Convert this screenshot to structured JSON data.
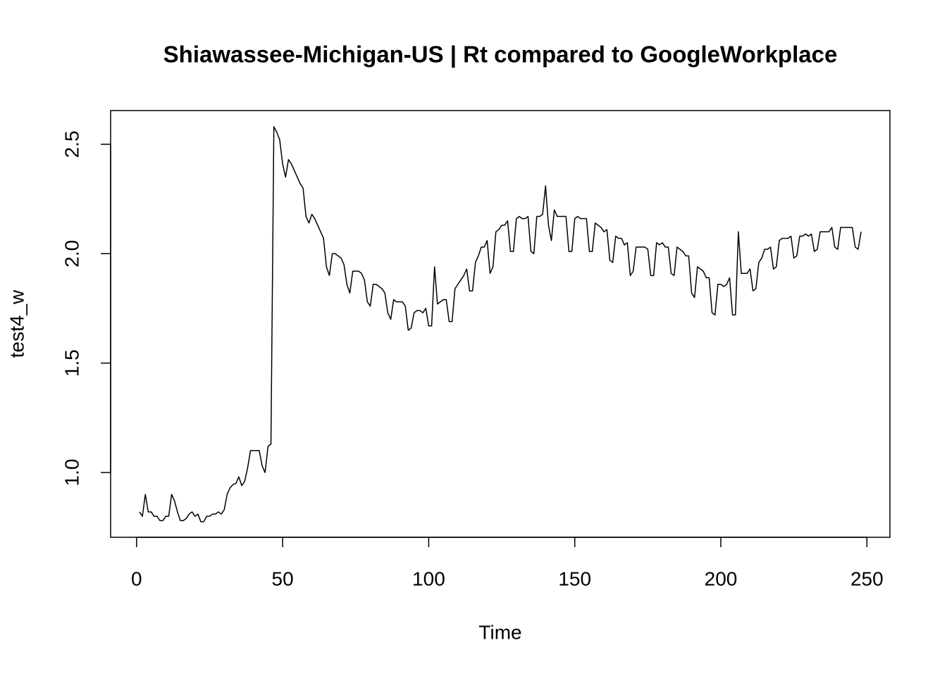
{
  "chart_data": {
    "type": "line",
    "title": "Shiawassee-Michigan-US | Rt compared to GoogleWorkplace",
    "xlabel": "Time",
    "ylabel": "test4_w",
    "color": "#000000",
    "x": [
      1,
      2,
      3,
      4,
      5,
      6,
      7,
      8,
      9,
      10,
      11,
      12,
      13,
      14,
      15,
      16,
      17,
      18,
      19,
      20,
      21,
      22,
      23,
      24,
      25,
      26,
      27,
      28,
      29,
      30,
      31,
      32,
      33,
      34,
      35,
      36,
      37,
      38,
      39,
      40,
      41,
      42,
      43,
      44,
      45,
      46,
      47,
      48,
      49,
      50,
      51,
      52,
      53,
      54,
      55,
      56,
      57,
      58,
      59,
      60,
      61,
      62,
      63,
      64,
      65,
      66,
      67,
      68,
      69,
      70,
      71,
      72,
      73,
      74,
      75,
      76,
      77,
      78,
      79,
      80,
      81,
      82,
      83,
      84,
      85,
      86,
      87,
      88,
      89,
      90,
      91,
      92,
      93,
      94,
      95,
      96,
      97,
      98,
      99,
      100,
      101,
      102,
      103,
      104,
      105,
      106,
      107,
      108,
      109,
      110,
      111,
      112,
      113,
      114,
      115,
      116,
      117,
      118,
      119,
      120,
      121,
      122,
      123,
      124,
      125,
      126,
      127,
      128,
      129,
      130,
      131,
      132,
      133,
      134,
      135,
      136,
      137,
      138,
      139,
      140,
      141,
      142,
      143,
      144,
      145,
      146,
      147,
      148,
      149,
      150,
      151,
      152,
      153,
      154,
      155,
      156,
      157,
      158,
      159,
      160,
      161,
      162,
      163,
      164,
      165,
      166,
      167,
      168,
      169,
      170,
      171,
      172,
      173,
      174,
      175,
      176,
      177,
      178,
      179,
      180,
      181,
      182,
      183,
      184,
      185,
      186,
      187,
      188,
      189,
      190,
      191,
      192,
      193,
      194,
      195,
      196,
      197,
      198,
      199,
      200,
      201,
      202,
      203,
      204,
      205,
      206,
      207,
      208,
      209,
      210,
      211,
      212,
      213,
      214,
      215,
      216,
      217,
      218,
      219,
      220,
      221,
      222,
      223,
      224,
      225,
      226,
      227,
      228,
      229,
      230,
      231,
      232,
      233,
      234,
      235,
      236,
      237,
      238,
      239,
      240,
      241,
      242,
      243,
      244,
      245,
      246,
      247,
      248
    ],
    "values": [
      0.82,
      0.8,
      0.9,
      0.82,
      0.82,
      0.8,
      0.8,
      0.78,
      0.78,
      0.8,
      0.8,
      0.9,
      0.87,
      0.82,
      0.78,
      0.78,
      0.79,
      0.81,
      0.82,
      0.8,
      0.81,
      0.775,
      0.775,
      0.8,
      0.8,
      0.81,
      0.81,
      0.82,
      0.81,
      0.83,
      0.9,
      0.93,
      0.945,
      0.95,
      0.98,
      0.94,
      0.96,
      1.02,
      1.1,
      1.1,
      1.1,
      1.1,
      1.03,
      1.0,
      1.12,
      1.13,
      2.58,
      2.555,
      2.52,
      2.41,
      2.35,
      2.43,
      2.41,
      2.38,
      2.35,
      2.32,
      2.3,
      2.17,
      2.14,
      2.18,
      2.16,
      2.13,
      2.1,
      2.07,
      1.94,
      1.9,
      2.0,
      2.0,
      1.99,
      1.98,
      1.95,
      1.86,
      1.82,
      1.92,
      1.92,
      1.92,
      1.91,
      1.88,
      1.78,
      1.76,
      1.86,
      1.86,
      1.85,
      1.84,
      1.82,
      1.73,
      1.7,
      1.79,
      1.78,
      1.78,
      1.78,
      1.76,
      1.65,
      1.66,
      1.73,
      1.74,
      1.74,
      1.73,
      1.75,
      1.67,
      1.67,
      1.94,
      1.77,
      1.78,
      1.79,
      1.79,
      1.69,
      1.69,
      1.84,
      1.86,
      1.88,
      1.9,
      1.93,
      1.83,
      1.83,
      1.96,
      1.99,
      2.03,
      2.03,
      2.06,
      1.91,
      1.94,
      2.1,
      2.11,
      2.13,
      2.13,
      2.15,
      2.01,
      2.01,
      2.16,
      2.17,
      2.16,
      2.16,
      2.17,
      2.01,
      2.0,
      2.17,
      2.17,
      2.18,
      2.31,
      2.13,
      2.06,
      2.2,
      2.17,
      2.17,
      2.17,
      2.17,
      2.01,
      2.01,
      2.16,
      2.17,
      2.16,
      2.16,
      2.16,
      2.01,
      2.01,
      2.14,
      2.13,
      2.12,
      2.1,
      2.11,
      1.97,
      1.96,
      2.08,
      2.07,
      2.07,
      2.04,
      2.05,
      1.9,
      1.92,
      2.03,
      2.03,
      2.03,
      2.03,
      2.02,
      1.9,
      1.9,
      2.05,
      2.04,
      2.05,
      2.03,
      2.03,
      1.91,
      1.9,
      2.03,
      2.02,
      2.01,
      1.99,
      1.99,
      1.82,
      1.8,
      1.94,
      1.93,
      1.92,
      1.89,
      1.89,
      1.73,
      1.72,
      1.86,
      1.86,
      1.85,
      1.86,
      1.89,
      1.72,
      1.72,
      2.1,
      1.91,
      1.91,
      1.91,
      1.93,
      1.83,
      1.84,
      1.96,
      1.98,
      2.02,
      2.02,
      2.03,
      1.93,
      1.94,
      2.06,
      2.07,
      2.07,
      2.07,
      2.08,
      1.98,
      1.99,
      2.08,
      2.08,
      2.09,
      2.08,
      2.09,
      2.01,
      2.02,
      2.1,
      2.1,
      2.1,
      2.1,
      2.12,
      2.03,
      2.02,
      2.12,
      2.12,
      2.12,
      2.12,
      2.12,
      2.03,
      2.02,
      2.1
    ],
    "xlim": [
      -8.88,
      257.88
    ],
    "xticks": [
      0,
      50,
      100,
      150,
      200,
      250
    ],
    "ylim": [
      0.704,
      2.654
    ],
    "yticks": [
      {
        "value": 1,
        "label": "1.0"
      },
      1.5,
      {
        "value": 2,
        "label": "2.0"
      },
      2.5
    ]
  }
}
